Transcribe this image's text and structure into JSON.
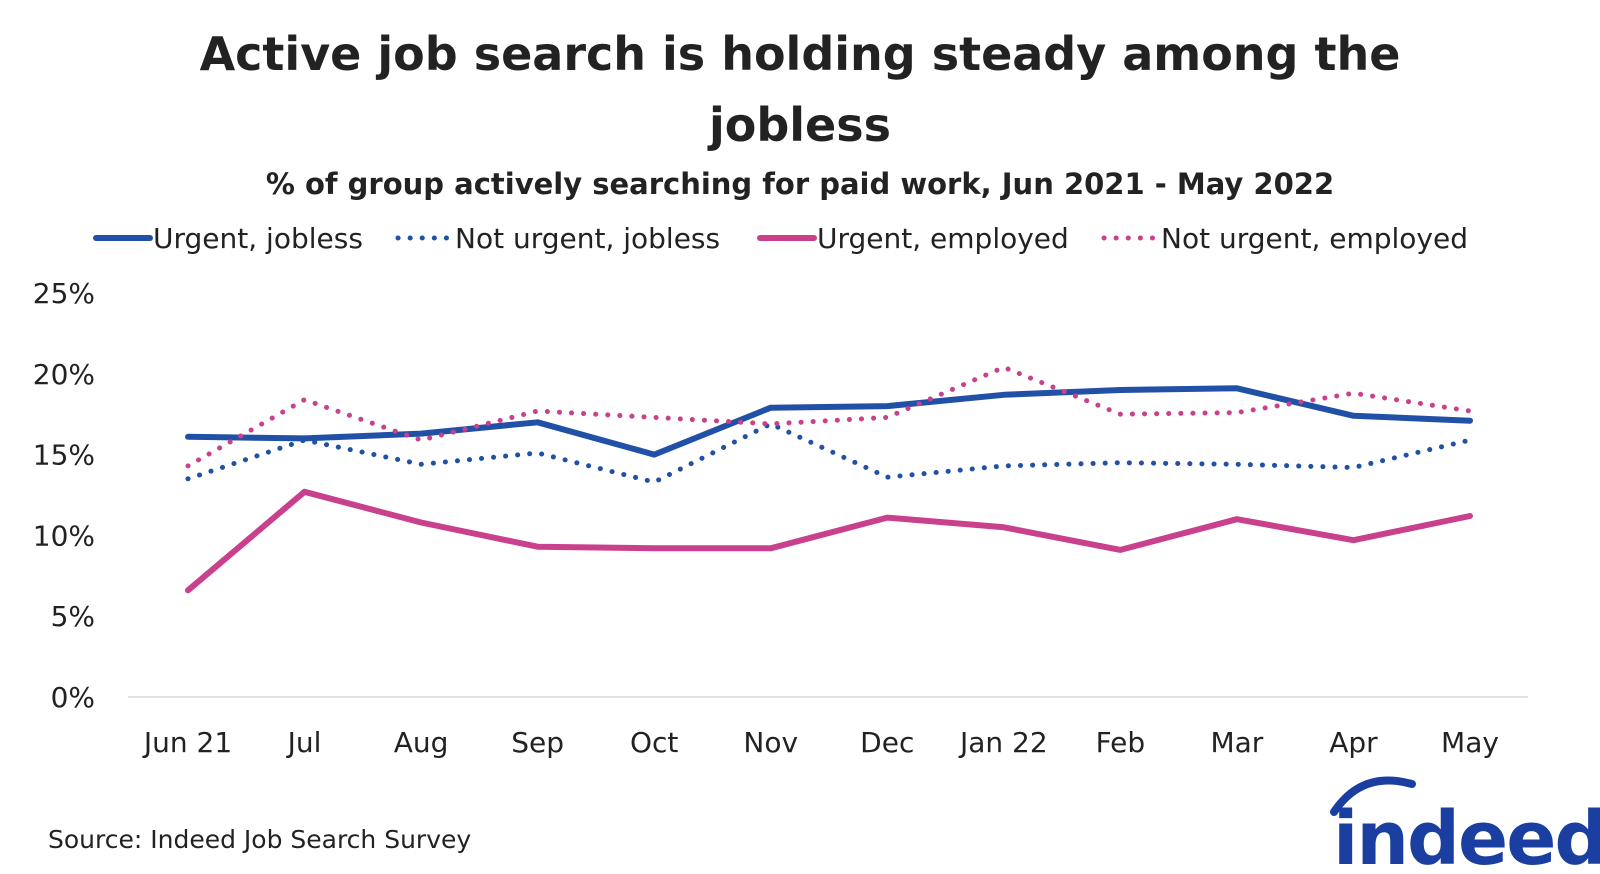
{
  "chart_data": {
    "type": "line",
    "title": "Active job search is holding steady among the jobless",
    "subtitle": "% of group actively searching for paid work, Jun 2021 - May 2022",
    "categories": [
      "Jun 21",
      "Jul",
      "Aug",
      "Sep",
      "Oct",
      "Nov",
      "Dec",
      "Jan 22",
      "Feb",
      "Mar",
      "Apr",
      "May"
    ],
    "y_ticks": [
      "0%",
      "5%",
      "10%",
      "15%",
      "20%",
      "25%"
    ],
    "ylim": [
      0,
      25
    ],
    "y_unit": "%",
    "grid": false,
    "legend_position": "top",
    "series": [
      {
        "name": "Urgent, jobless",
        "style": "solid",
        "color": "#2151a6",
        "values": [
          16.1,
          16.0,
          16.3,
          17.0,
          15.0,
          17.9,
          18.0,
          18.7,
          19.0,
          19.1,
          17.4,
          17.1
        ]
      },
      {
        "name": "Not urgent, jobless",
        "style": "dotted",
        "color": "#2151a6",
        "values": [
          13.5,
          15.9,
          14.4,
          15.1,
          13.3,
          16.9,
          13.6,
          14.3,
          14.5,
          14.4,
          14.2,
          15.9
        ]
      },
      {
        "name": "Urgent, employed",
        "style": "solid",
        "color": "#c9408c",
        "values": [
          6.6,
          12.7,
          10.8,
          9.3,
          9.2,
          9.2,
          11.1,
          10.5,
          9.1,
          11.0,
          9.7,
          11.2
        ]
      },
      {
        "name": "Not urgent, employed",
        "style": "dotted",
        "color": "#c9408c",
        "values": [
          14.3,
          18.4,
          15.9,
          17.7,
          17.3,
          16.9,
          17.3,
          20.4,
          17.5,
          17.6,
          18.8,
          17.7
        ]
      }
    ]
  },
  "source": "Source: Indeed Job Search Survey",
  "logo": {
    "text": "indeed",
    "color": "#1a3fa0",
    "icon": "indeed-logo-arc"
  }
}
